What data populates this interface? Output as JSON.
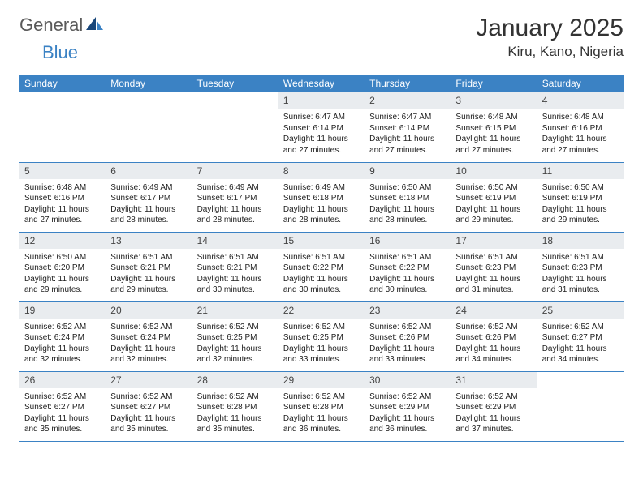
{
  "logo": {
    "text1": "General",
    "text2": "Blue"
  },
  "title": "January 2025",
  "location": "Kiru, Kano, Nigeria",
  "colors": {
    "header_bg": "#3b82c4",
    "header_text": "#ffffff",
    "daynum_bg": "#e9ecef",
    "border": "#3b82c4",
    "logo_gray": "#5a5a5a",
    "logo_blue": "#3b82c4"
  },
  "day_headers": [
    "Sunday",
    "Monday",
    "Tuesday",
    "Wednesday",
    "Thursday",
    "Friday",
    "Saturday"
  ],
  "weeks": [
    [
      null,
      null,
      null,
      {
        "n": "1",
        "sr": "6:47 AM",
        "ss": "6:14 PM",
        "dl": "11 hours and 27 minutes."
      },
      {
        "n": "2",
        "sr": "6:47 AM",
        "ss": "6:14 PM",
        "dl": "11 hours and 27 minutes."
      },
      {
        "n": "3",
        "sr": "6:48 AM",
        "ss": "6:15 PM",
        "dl": "11 hours and 27 minutes."
      },
      {
        "n": "4",
        "sr": "6:48 AM",
        "ss": "6:16 PM",
        "dl": "11 hours and 27 minutes."
      }
    ],
    [
      {
        "n": "5",
        "sr": "6:48 AM",
        "ss": "6:16 PM",
        "dl": "11 hours and 27 minutes."
      },
      {
        "n": "6",
        "sr": "6:49 AM",
        "ss": "6:17 PM",
        "dl": "11 hours and 28 minutes."
      },
      {
        "n": "7",
        "sr": "6:49 AM",
        "ss": "6:17 PM",
        "dl": "11 hours and 28 minutes."
      },
      {
        "n": "8",
        "sr": "6:49 AM",
        "ss": "6:18 PM",
        "dl": "11 hours and 28 minutes."
      },
      {
        "n": "9",
        "sr": "6:50 AM",
        "ss": "6:18 PM",
        "dl": "11 hours and 28 minutes."
      },
      {
        "n": "10",
        "sr": "6:50 AM",
        "ss": "6:19 PM",
        "dl": "11 hours and 29 minutes."
      },
      {
        "n": "11",
        "sr": "6:50 AM",
        "ss": "6:19 PM",
        "dl": "11 hours and 29 minutes."
      }
    ],
    [
      {
        "n": "12",
        "sr": "6:50 AM",
        "ss": "6:20 PM",
        "dl": "11 hours and 29 minutes."
      },
      {
        "n": "13",
        "sr": "6:51 AM",
        "ss": "6:21 PM",
        "dl": "11 hours and 29 minutes."
      },
      {
        "n": "14",
        "sr": "6:51 AM",
        "ss": "6:21 PM",
        "dl": "11 hours and 30 minutes."
      },
      {
        "n": "15",
        "sr": "6:51 AM",
        "ss": "6:22 PM",
        "dl": "11 hours and 30 minutes."
      },
      {
        "n": "16",
        "sr": "6:51 AM",
        "ss": "6:22 PM",
        "dl": "11 hours and 30 minutes."
      },
      {
        "n": "17",
        "sr": "6:51 AM",
        "ss": "6:23 PM",
        "dl": "11 hours and 31 minutes."
      },
      {
        "n": "18",
        "sr": "6:51 AM",
        "ss": "6:23 PM",
        "dl": "11 hours and 31 minutes."
      }
    ],
    [
      {
        "n": "19",
        "sr": "6:52 AM",
        "ss": "6:24 PM",
        "dl": "11 hours and 32 minutes."
      },
      {
        "n": "20",
        "sr": "6:52 AM",
        "ss": "6:24 PM",
        "dl": "11 hours and 32 minutes."
      },
      {
        "n": "21",
        "sr": "6:52 AM",
        "ss": "6:25 PM",
        "dl": "11 hours and 32 minutes."
      },
      {
        "n": "22",
        "sr": "6:52 AM",
        "ss": "6:25 PM",
        "dl": "11 hours and 33 minutes."
      },
      {
        "n": "23",
        "sr": "6:52 AM",
        "ss": "6:26 PM",
        "dl": "11 hours and 33 minutes."
      },
      {
        "n": "24",
        "sr": "6:52 AM",
        "ss": "6:26 PM",
        "dl": "11 hours and 34 minutes."
      },
      {
        "n": "25",
        "sr": "6:52 AM",
        "ss": "6:27 PM",
        "dl": "11 hours and 34 minutes."
      }
    ],
    [
      {
        "n": "26",
        "sr": "6:52 AM",
        "ss": "6:27 PM",
        "dl": "11 hours and 35 minutes."
      },
      {
        "n": "27",
        "sr": "6:52 AM",
        "ss": "6:27 PM",
        "dl": "11 hours and 35 minutes."
      },
      {
        "n": "28",
        "sr": "6:52 AM",
        "ss": "6:28 PM",
        "dl": "11 hours and 35 minutes."
      },
      {
        "n": "29",
        "sr": "6:52 AM",
        "ss": "6:28 PM",
        "dl": "11 hours and 36 minutes."
      },
      {
        "n": "30",
        "sr": "6:52 AM",
        "ss": "6:29 PM",
        "dl": "11 hours and 36 minutes."
      },
      {
        "n": "31",
        "sr": "6:52 AM",
        "ss": "6:29 PM",
        "dl": "11 hours and 37 minutes."
      },
      null
    ]
  ],
  "labels": {
    "sunrise": "Sunrise: ",
    "sunset": "Sunset: ",
    "daylight": "Daylight: "
  }
}
